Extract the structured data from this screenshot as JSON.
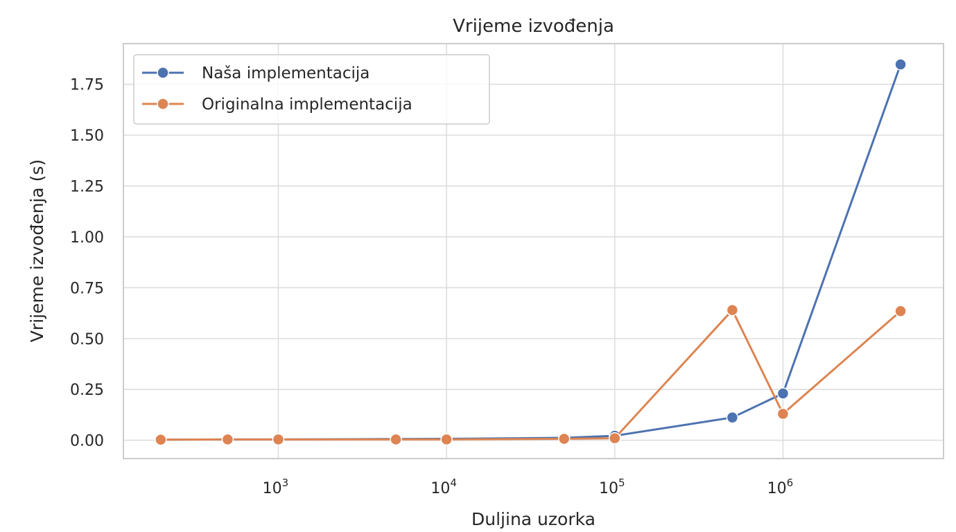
{
  "chart_data": {
    "type": "line",
    "title": "Vrijeme izvođenja",
    "xlabel": "Duljina uzorka",
    "ylabel": "Vrijeme izvođenja (s)",
    "xscale": "log",
    "grid": true,
    "legend_position": "top-left",
    "xticks": [
      {
        "value": 1000,
        "base": "10",
        "exp": "3"
      },
      {
        "value": 10000,
        "base": "10",
        "exp": "4"
      },
      {
        "value": 100000,
        "base": "10",
        "exp": "5"
      },
      {
        "value": 1000000,
        "base": "10",
        "exp": "6"
      }
    ],
    "yticks": [
      "0.00",
      "0.25",
      "0.50",
      "0.75",
      "1.00",
      "1.25",
      "1.50",
      "1.75"
    ],
    "ylim": [
      -0.09,
      1.95
    ],
    "xlim": [
      120,
      9000000
    ],
    "series": [
      {
        "name": "Naša implementacija",
        "color": "#4c72b0",
        "x": [
          200,
          500,
          1000,
          5000,
          10000,
          50000,
          100000,
          500000,
          1000000,
          5000000
        ],
        "y": [
          0.003,
          0.004,
          0.004,
          0.006,
          0.007,
          0.012,
          0.022,
          0.112,
          0.23,
          1.848
        ]
      },
      {
        "name": "Originalna implementacija",
        "color": "#dd8452",
        "x": [
          200,
          500,
          1000,
          5000,
          10000,
          50000,
          100000,
          500000,
          1000000,
          5000000
        ],
        "y": [
          0.003,
          0.004,
          0.004,
          0.004,
          0.004,
          0.007,
          0.01,
          0.64,
          0.13,
          0.635
        ]
      }
    ]
  }
}
